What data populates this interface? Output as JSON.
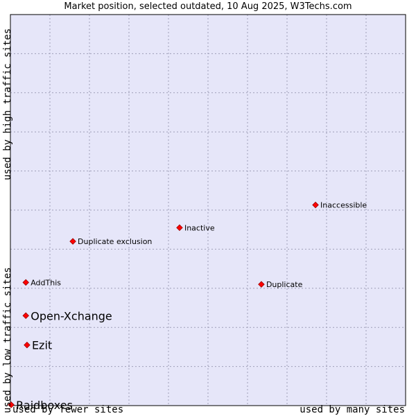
{
  "chart_data": {
    "type": "scatter",
    "title": "Market position, selected outdated, 10 Aug 2025, W3Techs.com",
    "xlabel_low": "used by fewer sites",
    "xlabel_high": "used by many sites",
    "ylabel_low": "used by low traffic sites",
    "ylabel_high": "used by high traffic sites",
    "xlim": [
      0,
      100
    ],
    "ylim": [
      0,
      100
    ],
    "grid": true,
    "colors": {
      "plot_bg": "#e6e6f9",
      "grid": "#9e9eb8",
      "marker": "#ff0000",
      "marker_edge": "#990000"
    },
    "points": [
      {
        "label": "Inaccessible",
        "x": 77.2,
        "y": 51.3,
        "emphasis": false
      },
      {
        "label": "Inactive",
        "x": 42.8,
        "y": 45.5,
        "emphasis": false
      },
      {
        "label": "Duplicate exclusion",
        "x": 15.8,
        "y": 42.0,
        "emphasis": false
      },
      {
        "label": "AddThis",
        "x": 3.9,
        "y": 31.5,
        "emphasis": false
      },
      {
        "label": "Duplicate",
        "x": 63.5,
        "y": 31.0,
        "emphasis": false
      },
      {
        "label": "Open-Xchange",
        "x": 3.9,
        "y": 23.0,
        "emphasis": true
      },
      {
        "label": "Ezit",
        "x": 4.2,
        "y": 15.5,
        "emphasis": true
      },
      {
        "label": "Raidboxes",
        "x": 0.2,
        "y": 0.2,
        "emphasis": true
      }
    ]
  }
}
